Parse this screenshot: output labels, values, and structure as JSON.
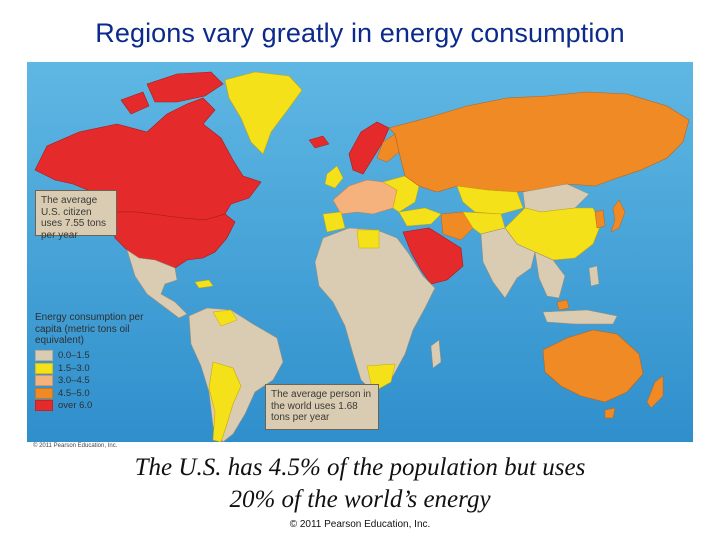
{
  "title": "Regions vary greatly in energy consumption",
  "map": {
    "callout_us": "The average U.S. citizen uses 7.55 tons per year",
    "callout_world": "The average person in the world uses 1.68 tons per year",
    "legend_title": "Energy consumption per capita (metric tons oil equivalent)",
    "legend": [
      {
        "label": "0.0–1.5",
        "color": "#d9ccb2"
      },
      {
        "label": "1.5–3.0",
        "color": "#f5e11a"
      },
      {
        "label": "3.0–4.5",
        "color": "#f6b27c"
      },
      {
        "label": "4.5–5.0",
        "color": "#f08a25"
      },
      {
        "label": "over 6.0",
        "color": "#e52a2c"
      }
    ],
    "image_credit": "© 2011 Pearson Education, Inc."
  },
  "caption": {
    "line1": "The U.S. has 4.5% of the population but uses",
    "line2": "20% of the world’s energy"
  },
  "footer": "© 2011 Pearson Education, Inc."
}
